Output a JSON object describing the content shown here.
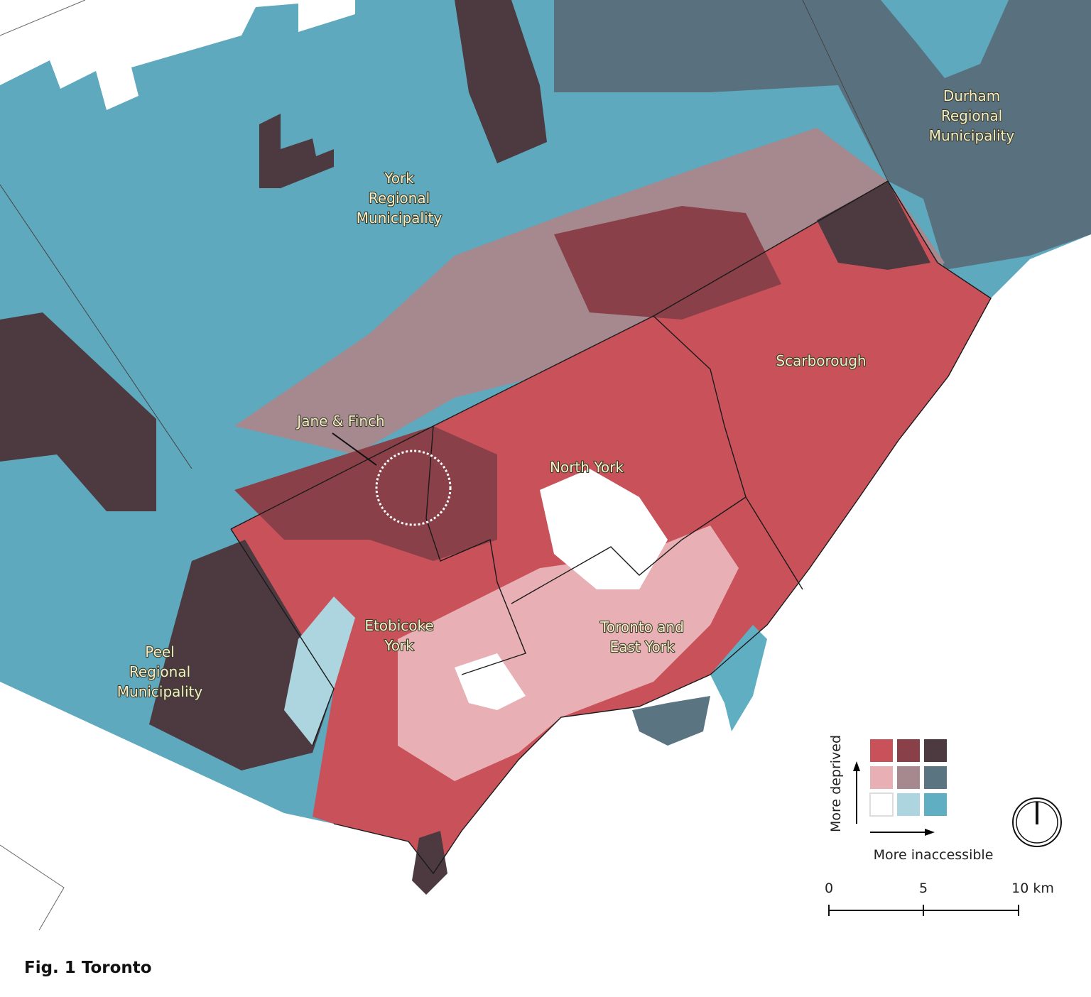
{
  "map": {
    "labels": [
      {
        "lines": [
          "York",
          "Regional",
          "Municipality"
        ]
      },
      {
        "lines": [
          "Durham",
          "Regional",
          "Municipality"
        ]
      },
      {
        "lines": [
          "Scarborough"
        ]
      },
      {
        "lines": [
          "Jane & Finch"
        ]
      },
      {
        "lines": [
          "North York"
        ]
      },
      {
        "lines": [
          "Etobicoke",
          "York"
        ]
      },
      {
        "lines": [
          "Toronto and",
          "East York"
        ]
      },
      {
        "lines": [
          "Peel",
          "Regional",
          "Municipality"
        ]
      }
    ],
    "legend": {
      "y_label": "More deprived",
      "x_label": "More inaccessible",
      "colors": [
        [
          "#c9525a",
          "#8a4048",
          "#4c3a40"
        ],
        [
          "#e8b0b4",
          "#a6888f",
          "#5a7482"
        ],
        [
          "#ffffff",
          "#acd5e0",
          "#5faec2"
        ]
      ]
    },
    "scale_bar": {
      "labels": [
        "0",
        "5",
        "10 km"
      ]
    },
    "caption": "Fig. 1 Toronto"
  }
}
